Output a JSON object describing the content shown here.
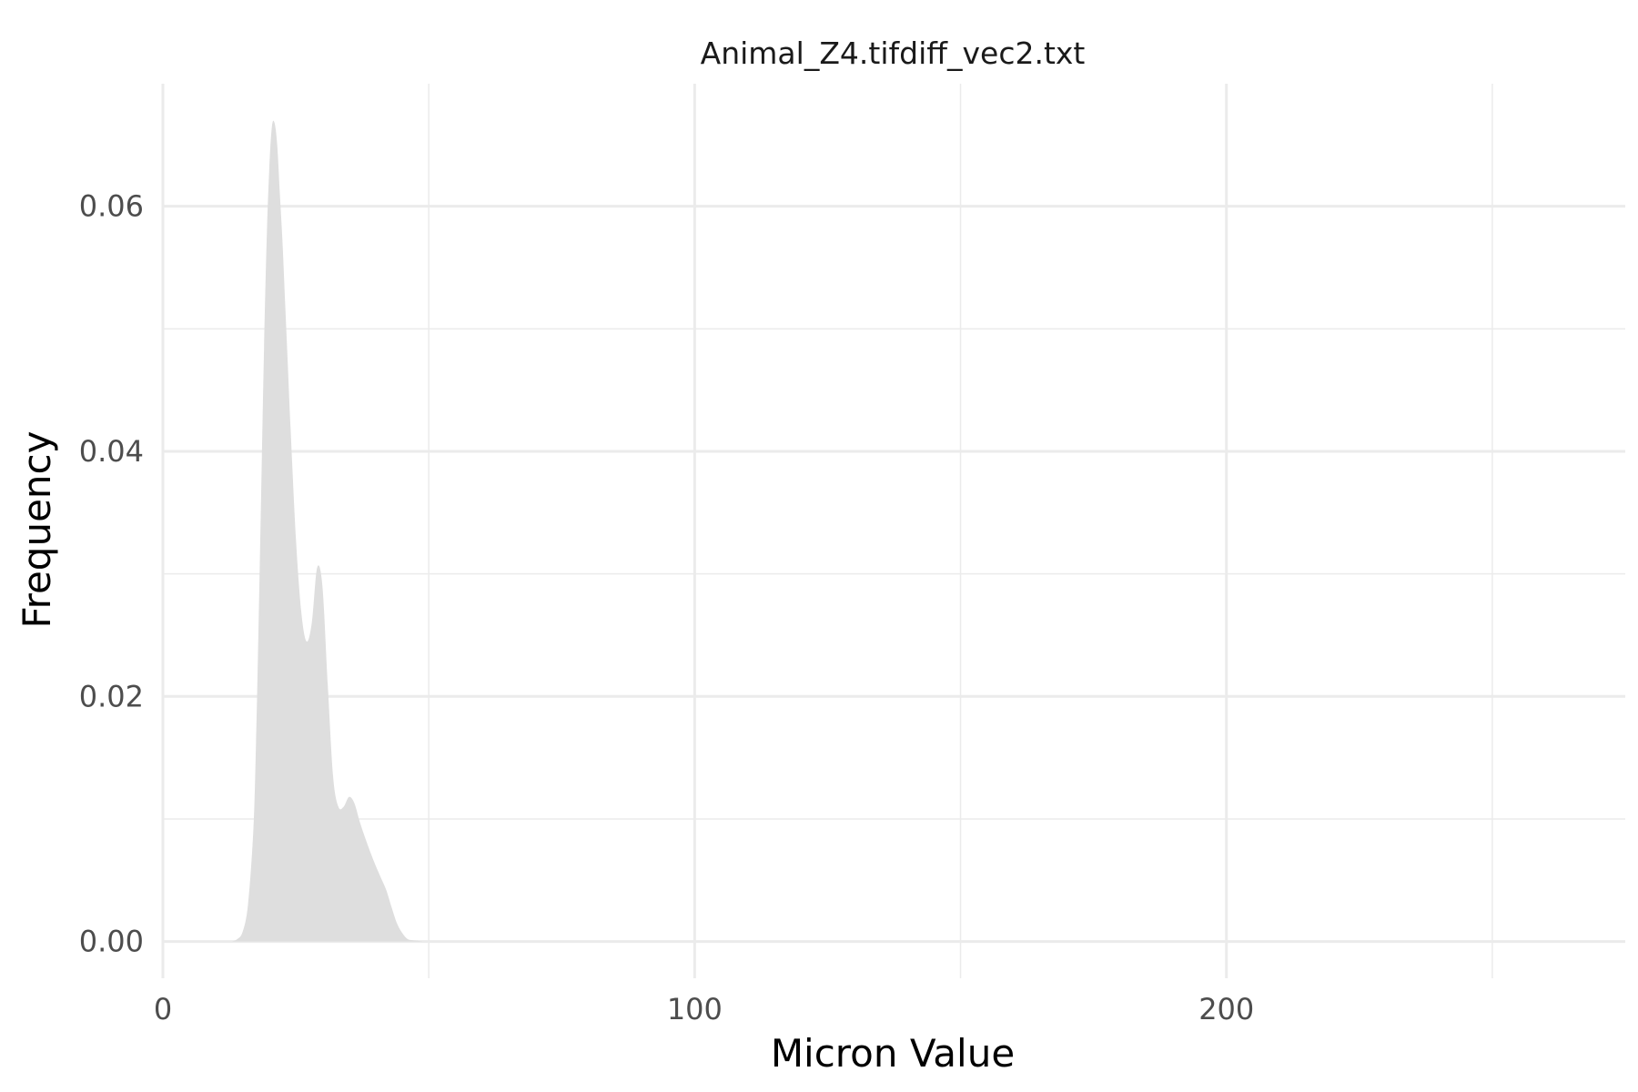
{
  "chart_data": {
    "type": "area",
    "title": "Animal_Z4.tifdiff_vec2.txt",
    "xlabel": "Micron Value",
    "ylabel": "Frequency",
    "xlim": [
      0,
      275
    ],
    "ylim": [
      -0.003,
      0.07
    ],
    "x_major_ticks": [
      0,
      100,
      200
    ],
    "x_tick_labels": [
      "0",
      "100",
      "200"
    ],
    "x_minor_ticks": [
      50,
      150,
      250
    ],
    "y_major_ticks": [
      0,
      0.02,
      0.04,
      0.06
    ],
    "y_tick_labels": [
      "0.00",
      "0.02",
      "0.04",
      "0.06"
    ],
    "y_minor_ticks": [
      0.01,
      0.03,
      0.05
    ],
    "grid": true,
    "legend": "none",
    "fill_color": "#dedede",
    "grid_color": "#ebebeb",
    "series": [
      {
        "x": [
          13,
          14,
          15,
          16,
          17,
          17.5,
          18,
          18.5,
          19,
          19.5,
          20,
          20.5,
          21,
          21.5,
          22,
          22.5,
          23,
          23.5,
          24,
          25,
          26,
          27,
          28,
          29,
          30,
          31,
          32,
          33,
          34,
          35,
          36,
          37,
          38,
          39,
          40,
          41,
          42,
          43,
          44,
          45,
          46,
          47,
          48,
          49,
          50,
          51,
          52,
          53,
          54,
          55,
          56,
          57,
          58
        ],
        "y": [
          0,
          0.0002,
          0.0008,
          0.003,
          0.009,
          0.016,
          0.026,
          0.037,
          0.048,
          0.057,
          0.063,
          0.0665,
          0.0668,
          0.065,
          0.061,
          0.057,
          0.052,
          0.047,
          0.042,
          0.033,
          0.027,
          0.0245,
          0.026,
          0.0305,
          0.029,
          0.021,
          0.0135,
          0.011,
          0.011,
          0.0118,
          0.0113,
          0.0098,
          0.0085,
          0.0073,
          0.0062,
          0.0052,
          0.0042,
          0.0028,
          0.0015,
          0.0007,
          0.0002,
          0.0001,
          5e-05,
          0,
          0,
          0,
          0,
          0,
          0,
          0,
          0,
          0,
          0
        ]
      }
    ]
  }
}
